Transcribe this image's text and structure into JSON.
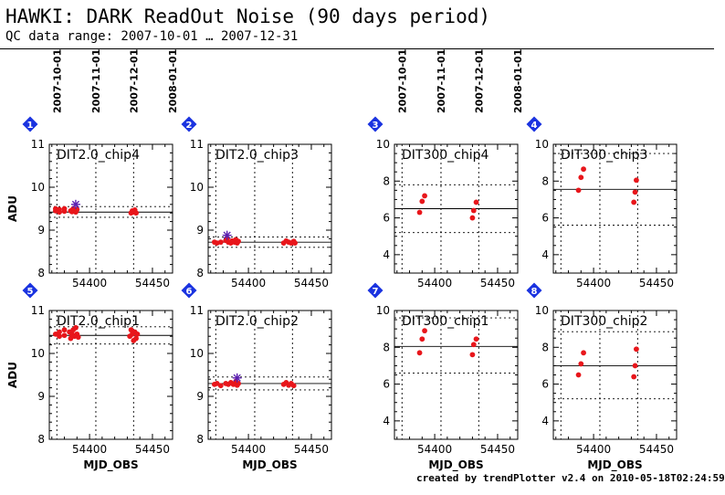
{
  "header": {
    "title": "HAWKI: DARK ReadOut Noise (90 days period)",
    "subtitle": "QC data range: 2007-10-01 … 2007-12-31"
  },
  "footer": "created by trendPlotter v2.4 on 2010-05-18T02:24:59",
  "colors": {
    "points": "#e8161b",
    "star": "#5b20b0",
    "badge": "#1a33e0",
    "axis": "#000000"
  },
  "top_date_ticks": [
    {
      "label": "2007-10-01",
      "mjd": 54374
    },
    {
      "label": "2007-11-01",
      "mjd": 54405
    },
    {
      "label": "2007-12-01",
      "mjd": 54435
    },
    {
      "label": "2008-01-01",
      "mjd": 54466
    }
  ],
  "chart_data": [
    {
      "type": "scatter",
      "panel": "1",
      "label": "DIT2.0_chip4",
      "xlabel": "",
      "ylabel": "ADU",
      "xlim": [
        54368,
        54466
      ],
      "ylim": [
        8,
        11
      ],
      "xticks": [
        54400,
        54450
      ],
      "yticks": [
        8,
        9,
        10,
        11
      ],
      "median": 9.42,
      "limits": [
        9.3,
        9.55
      ],
      "points": [
        [
          54373,
          9.45
        ],
        [
          54373,
          9.5
        ],
        [
          54376,
          9.42
        ],
        [
          54376,
          9.48
        ],
        [
          54380,
          9.44
        ],
        [
          54380,
          9.5
        ],
        [
          54385,
          9.45
        ],
        [
          54386,
          9.43
        ],
        [
          54387,
          9.5
        ],
        [
          54388,
          9.47
        ],
        [
          54389,
          9.42
        ],
        [
          54390,
          9.48
        ],
        [
          54433,
          9.4
        ],
        [
          54434,
          9.45
        ],
        [
          54435,
          9.42
        ],
        [
          54436,
          9.47
        ],
        [
          54437,
          9.4
        ]
      ],
      "stars": [
        [
          54389,
          9.6
        ]
      ]
    },
    {
      "type": "scatter",
      "panel": "2",
      "label": "DIT2.0_chip3",
      "xlabel": "",
      "ylabel": "",
      "xlim": [
        54368,
        54466
      ],
      "ylim": [
        8,
        11
      ],
      "xticks": [
        54400,
        54450
      ],
      "yticks": [
        8,
        9,
        10,
        11
      ],
      "median": 8.72,
      "limits": [
        8.6,
        8.84
      ],
      "points": [
        [
          54373,
          8.72
        ],
        [
          54375,
          8.7
        ],
        [
          54378,
          8.72
        ],
        [
          54382,
          8.76
        ],
        [
          54383,
          8.8
        ],
        [
          54384,
          8.72
        ],
        [
          54386,
          8.7
        ],
        [
          54387,
          8.75
        ],
        [
          54389,
          8.72
        ],
        [
          54390,
          8.78
        ],
        [
          54391,
          8.7
        ],
        [
          54392,
          8.74
        ],
        [
          54428,
          8.7
        ],
        [
          54430,
          8.75
        ],
        [
          54432,
          8.72
        ],
        [
          54434,
          8.7
        ],
        [
          54436,
          8.74
        ],
        [
          54437,
          8.7
        ]
      ],
      "stars": [
        [
          54383,
          8.88
        ]
      ]
    },
    {
      "type": "scatter",
      "panel": "3",
      "label": "DIT300_chip4",
      "xlabel": "",
      "ylabel": "",
      "xlim": [
        54368,
        54466
      ],
      "ylim": [
        3,
        10
      ],
      "xticks": [
        54400,
        54450
      ],
      "yticks": [
        4,
        6,
        8,
        10
      ],
      "median": 6.5,
      "limits": [
        5.2,
        7.8
      ],
      "points": [
        [
          54388,
          6.3
        ],
        [
          54390,
          6.9
        ],
        [
          54392,
          7.2
        ],
        [
          54430,
          6.0
        ],
        [
          54431,
          6.4
        ],
        [
          54433,
          6.85
        ]
      ],
      "stars": []
    },
    {
      "type": "scatter",
      "panel": "4",
      "label": "DIT300_chip3",
      "xlabel": "",
      "ylabel": "",
      "xlim": [
        54368,
        54466
      ],
      "ylim": [
        3,
        10
      ],
      "xticks": [
        54400,
        54450
      ],
      "yticks": [
        4,
        6,
        8,
        10
      ],
      "median": 7.55,
      "limits": [
        5.6,
        9.5
      ],
      "points": [
        [
          54388,
          7.5
        ],
        [
          54390,
          8.2
        ],
        [
          54392,
          8.65
        ],
        [
          54432,
          6.85
        ],
        [
          54433,
          7.4
        ],
        [
          54434,
          8.05
        ]
      ],
      "stars": []
    },
    {
      "type": "scatter",
      "panel": "5",
      "label": "DIT2.0_chip1",
      "xlabel": "MJD_OBS",
      "ylabel": "ADU",
      "xlim": [
        54368,
        54466
      ],
      "ylim": [
        8,
        11
      ],
      "xticks": [
        54400,
        54450
      ],
      "yticks": [
        8,
        9,
        10,
        11
      ],
      "median": 10.42,
      "limits": [
        10.22,
        10.62
      ],
      "points": [
        [
          54373,
          10.45
        ],
        [
          54376,
          10.4
        ],
        [
          54376,
          10.5
        ],
        [
          54380,
          10.42
        ],
        [
          54380,
          10.55
        ],
        [
          54384,
          10.5
        ],
        [
          54385,
          10.35
        ],
        [
          54386,
          10.45
        ],
        [
          54387,
          10.55
        ],
        [
          54388,
          10.4
        ],
        [
          54389,
          10.6
        ],
        [
          54390,
          10.45
        ],
        [
          54391,
          10.38
        ],
        [
          54432,
          10.4
        ],
        [
          54433,
          10.55
        ],
        [
          54434,
          10.45
        ],
        [
          54435,
          10.3
        ],
        [
          54436,
          10.5
        ],
        [
          54437,
          10.35
        ],
        [
          54438,
          10.45
        ]
      ],
      "stars": []
    },
    {
      "type": "scatter",
      "panel": "6",
      "label": "DIT2.0_chip2",
      "xlabel": "MJD_OBS",
      "ylabel": "",
      "xlim": [
        54368,
        54466
      ],
      "ylim": [
        8,
        11
      ],
      "xticks": [
        54400,
        54450
      ],
      "yticks": [
        8,
        9,
        10,
        11
      ],
      "median": 9.3,
      "limits": [
        9.15,
        9.45
      ],
      "points": [
        [
          54373,
          9.28
        ],
        [
          54375,
          9.3
        ],
        [
          54378,
          9.25
        ],
        [
          54382,
          9.3
        ],
        [
          54384,
          9.28
        ],
        [
          54386,
          9.32
        ],
        [
          54388,
          9.28
        ],
        [
          54390,
          9.35
        ],
        [
          54391,
          9.26
        ],
        [
          54392,
          9.3
        ],
        [
          54428,
          9.28
        ],
        [
          54430,
          9.32
        ],
        [
          54432,
          9.26
        ],
        [
          54434,
          9.3
        ],
        [
          54436,
          9.25
        ]
      ],
      "stars": [
        [
          54391,
          9.43
        ]
      ]
    },
    {
      "type": "scatter",
      "panel": "7",
      "label": "DIT300_chip1",
      "xlabel": "MJD_OBS",
      "ylabel": "",
      "xlim": [
        54368,
        54466
      ],
      "ylim": [
        3,
        10
      ],
      "xticks": [
        54400,
        54450
      ],
      "yticks": [
        4,
        6,
        8,
        10
      ],
      "median": 8.05,
      "limits": [
        6.6,
        9.6
      ],
      "points": [
        [
          54388,
          7.7
        ],
        [
          54390,
          8.45
        ],
        [
          54392,
          8.9
        ],
        [
          54430,
          7.6
        ],
        [
          54431,
          8.15
        ],
        [
          54433,
          8.45
        ]
      ],
      "stars": []
    },
    {
      "type": "scatter",
      "panel": "8",
      "label": "DIT300_chip2",
      "xlabel": "MJD_OBS",
      "ylabel": "",
      "xlim": [
        54368,
        54466
      ],
      "ylim": [
        3,
        10
      ],
      "xticks": [
        54400,
        54450
      ],
      "yticks": [
        4,
        6,
        8,
        10
      ],
      "median": 7.0,
      "limits": [
        5.2,
        8.85
      ],
      "points": [
        [
          54388,
          6.5
        ],
        [
          54390,
          7.1
        ],
        [
          54392,
          7.7
        ],
        [
          54432,
          6.4
        ],
        [
          54433,
          7.0
        ],
        [
          54434,
          7.9
        ]
      ],
      "stars": []
    }
  ]
}
